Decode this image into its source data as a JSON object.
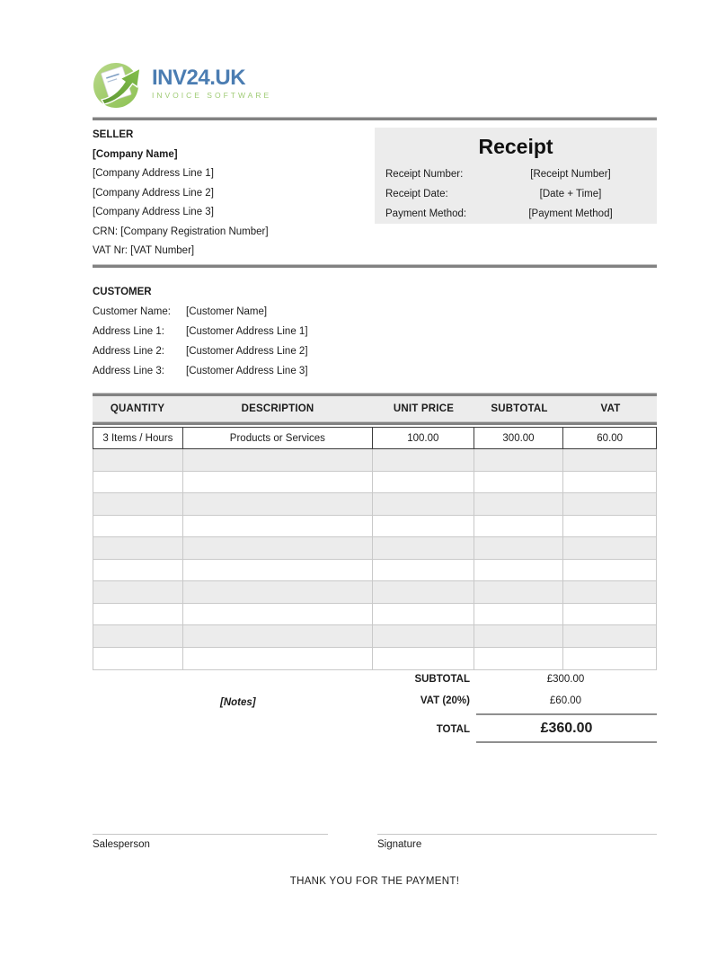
{
  "logo": {
    "name": "INV24.UK",
    "tagline": "INVOICE SOFTWARE"
  },
  "seller": {
    "heading": "SELLER",
    "company_name": "[Company Name]",
    "address_lines": [
      "[Company Address Line 1]",
      "[Company Address Line 2]",
      "[Company Address Line 3]"
    ],
    "crn": "CRN: [Company Registration Number]",
    "vat": "VAT Nr: [VAT Number]"
  },
  "receipt_box": {
    "title": "Receipt",
    "fields": [
      {
        "label": "Receipt Number:",
        "value": "[Receipt Number]"
      },
      {
        "label": "Receipt Date:",
        "value": "[Date + Time]"
      },
      {
        "label": "Payment Method:",
        "value": "[Payment Method]"
      }
    ]
  },
  "customer": {
    "heading": "CUSTOMER",
    "fields": [
      {
        "label": "Customer Name:",
        "value": "[Customer Name]"
      },
      {
        "label": "Address Line 1:",
        "value": "[Customer Address Line 1]"
      },
      {
        "label": "Address Line 2:",
        "value": "[Customer Address Line 2]"
      },
      {
        "label": "Address Line 3:",
        "value": "[Customer Address Line 3]"
      }
    ]
  },
  "items_table": {
    "headers": [
      "QUANTITY",
      "DESCRIPTION",
      "UNIT PRICE",
      "SUBTOTAL",
      "VAT"
    ],
    "rows": [
      [
        "3 Items / Hours",
        "Products or Services",
        "100.00",
        "300.00",
        "60.00"
      ]
    ],
    "empty_row_count": 10
  },
  "totals": {
    "subtotal_label": "SUBTOTAL",
    "subtotal_value": "£300.00",
    "vat_label": "VAT (20%)",
    "vat_value": "£60.00",
    "total_label": "TOTAL",
    "total_value": "£360.00"
  },
  "notes": "[Notes]",
  "signatures": {
    "salesperson_label": "Salesperson",
    "signature_label": "Signature"
  },
  "footer": {
    "thank_you": "THANK YOU FOR THE PAYMENT!"
  },
  "colors": {
    "logo_blue": "#4b7db2",
    "logo_green": "#7ab648",
    "tagline_green": "#9fcb74",
    "band_gray": "#ececec",
    "line_gray": "#828282"
  }
}
